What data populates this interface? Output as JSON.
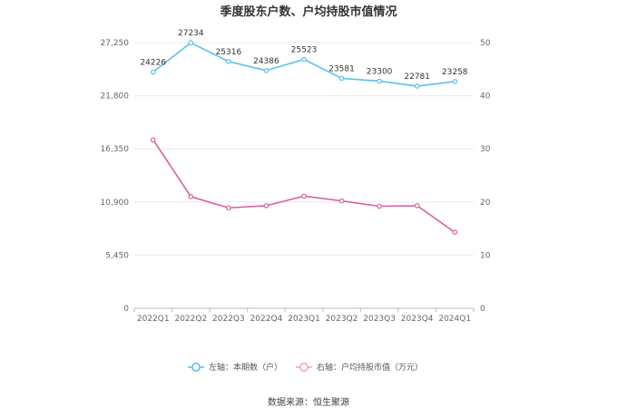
{
  "chart_data": {
    "type": "line",
    "title": "季度股东户数、户均持股市值情况",
    "categories": [
      "2022Q1",
      "2022Q2",
      "2022Q3",
      "2022Q4",
      "2023Q1",
      "2023Q2",
      "2023Q3",
      "2023Q4",
      "2024Q1"
    ],
    "series": [
      {
        "name": "左轴：本期数（户）",
        "axis": "left",
        "color": "#5bc0eb",
        "values": [
          24226,
          27234,
          25316,
          24386,
          25523,
          23581,
          23300,
          22781,
          23258
        ],
        "show_labels": true
      },
      {
        "name": "右轴：户均持股市值（万元）",
        "axis": "right",
        "color": "#d9609f",
        "values": [
          31.7,
          21.0,
          18.9,
          19.3,
          21.1,
          20.2,
          19.2,
          19.3,
          14.3
        ],
        "show_labels": false
      }
    ],
    "left_axis": {
      "min": 0,
      "max": 27250,
      "ticks": [
        0,
        5450,
        10900,
        16350,
        21800,
        27250
      ],
      "tick_labels": [
        "0",
        "5,450",
        "10,900",
        "16,350",
        "21,800",
        "27,250"
      ]
    },
    "right_axis": {
      "min": 0,
      "max": 50,
      "ticks": [
        0,
        10,
        20,
        30,
        40,
        50
      ],
      "tick_labels": [
        "0",
        "10",
        "20",
        "30",
        "40",
        "50"
      ]
    },
    "grid": true,
    "legend_position": "bottom"
  },
  "source_text": "数据来源：恒生聚源"
}
